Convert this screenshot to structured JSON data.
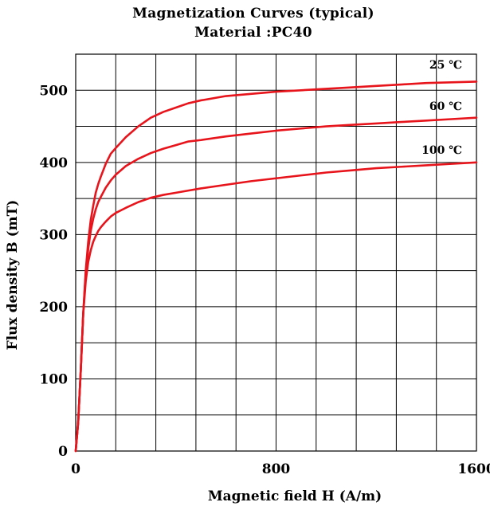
{
  "chart_data": {
    "type": "line",
    "title": [
      "Magnetization Curves (typical)",
      "Material :PC40"
    ],
    "xlabel": "Magnetic field H (A/m)",
    "ylabel": "Flux density B (mT)",
    "xlim": [
      0,
      1600
    ],
    "ylim": [
      0,
      550
    ],
    "x_ticks": [
      0,
      800,
      1600
    ],
    "y_ticks": [
      0,
      100,
      200,
      300,
      400,
      500
    ],
    "x_grid_step": 160,
    "y_grid_step": 50,
    "grid": true,
    "line_color": "#e8141c",
    "series": [
      {
        "name": "25 ℃",
        "x": [
          0,
          10,
          20,
          30,
          40,
          50,
          60,
          70,
          80,
          90,
          100,
          120,
          140,
          160,
          200,
          250,
          300,
          350,
          400,
          450,
          500,
          600,
          700,
          800,
          900,
          1000,
          1100,
          1200,
          1300,
          1400,
          1500,
          1600
        ],
        "y": [
          0,
          40,
          110,
          190,
          250,
          290,
          320,
          340,
          358,
          370,
          380,
          398,
          412,
          420,
          435,
          450,
          462,
          470,
          476,
          482,
          486,
          492,
          495,
          498,
          500,
          502,
          504,
          506,
          508,
          510,
          511,
          512
        ]
      },
      {
        "name": "60 ℃",
        "x": [
          0,
          10,
          20,
          30,
          40,
          50,
          60,
          70,
          80,
          90,
          100,
          120,
          140,
          160,
          200,
          250,
          300,
          350,
          400,
          450,
          500,
          600,
          700,
          800,
          900,
          1000,
          1100,
          1200,
          1300,
          1400,
          1500,
          1600
        ],
        "y": [
          0,
          40,
          110,
          190,
          245,
          280,
          305,
          322,
          335,
          345,
          352,
          365,
          375,
          383,
          395,
          405,
          413,
          419,
          424,
          429,
          431,
          436,
          440,
          444,
          447,
          450,
          452,
          454,
          456,
          458,
          460,
          462
        ]
      },
      {
        "name": "100 ℃",
        "x": [
          0,
          10,
          20,
          30,
          40,
          50,
          60,
          70,
          80,
          90,
          100,
          120,
          140,
          160,
          200,
          250,
          300,
          350,
          400,
          450,
          500,
          600,
          700,
          800,
          900,
          1000,
          1100,
          1200,
          1300,
          1400,
          1500,
          1600
        ],
        "y": [
          0,
          40,
          110,
          190,
          235,
          262,
          278,
          290,
          298,
          305,
          310,
          318,
          325,
          330,
          337,
          345,
          351,
          355,
          358,
          361,
          364,
          369,
          374,
          378,
          382,
          386,
          389,
          392,
          394,
          396,
          398,
          400
        ]
      }
    ]
  }
}
